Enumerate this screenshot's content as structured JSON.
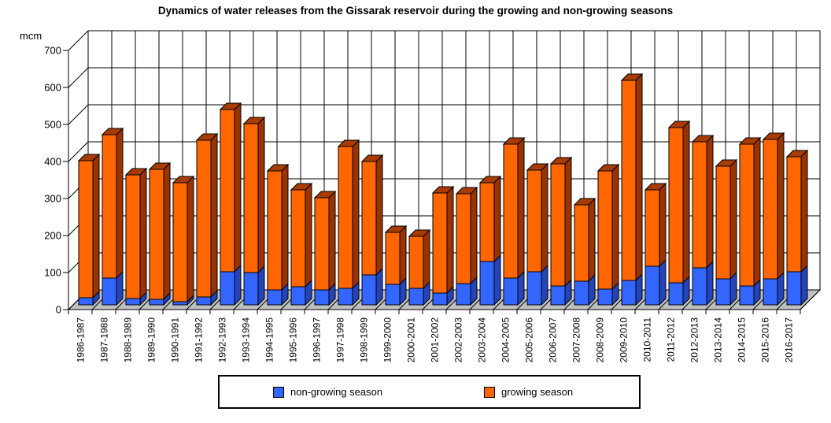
{
  "title": "Dynamics of water releases from the Gissarak reservoir during the growing and non-growing seasons",
  "y_axis": {
    "unit_label": "mcm",
    "min": 0,
    "max": 700,
    "step": 100,
    "ticks": [
      "0",
      "100",
      "200",
      "300",
      "400",
      "500",
      "600",
      "700"
    ]
  },
  "legend": {
    "non_growing_label": "non-growing season",
    "growing_label": "growing season"
  },
  "colors": {
    "non_growing_front": "#3366ff",
    "non_growing_side": "#2444bb",
    "growing_front": "#ff6600",
    "growing_side": "#993300",
    "growing_top": "#a83c00",
    "floor": "#c0c0c0",
    "line": "#000000",
    "background": "#ffffff"
  },
  "chart_data": {
    "type": "bar",
    "stacked": true,
    "pseudo_3d": true,
    "title": "Dynamics of water releases from the Gissarak reservoir during the growing and non-growing seasons",
    "xlabel": "",
    "ylabel": "mcm",
    "ylim": [
      0,
      700
    ],
    "y_step": 100,
    "grid": true,
    "legend_position": "bottom",
    "categories": [
      "1986-1987",
      "1987-1988",
      "1988-1989",
      "1989-1990",
      "1990-1991",
      "1991-1992",
      "1992-1993",
      "1993-1994",
      "1994-1995",
      "1995-1996",
      "1996-1997",
      "1997-1998",
      "1998-1999",
      "1999-2000",
      "2000-2001",
      "2001-2002",
      "2002-2003",
      "2003-2004",
      "2004-2005",
      "2005-2006",
      "2006-2007",
      "2007-2008",
      "2008-2009",
      "2009-2010",
      "2010-2011",
      "2011-2012",
      "2012-2013",
      "2013-2014",
      "2014-2015",
      "2015-2016",
      "2016-2017"
    ],
    "series": [
      {
        "name": "non-growing season",
        "color": "#3366ff",
        "values": [
          20,
          72,
          18,
          15,
          8,
          22,
          90,
          88,
          40,
          48,
          40,
          45,
          80,
          55,
          45,
          32,
          58,
          117,
          72,
          90,
          50,
          64,
          43,
          65,
          105,
          60,
          100,
          70,
          51,
          71,
          89
        ]
      },
      {
        "name": "growing season",
        "color": "#ff6600",
        "values": [
          370,
          388,
          334,
          352,
          322,
          423,
          438,
          402,
          322,
          262,
          250,
          383,
          308,
          140,
          140,
          271,
          242,
          213,
          361,
          273,
          330,
          206,
          319,
          542,
          205,
          418,
          340,
          305,
          384,
          376,
          311
        ]
      }
    ],
    "totals": [
      390,
      460,
      352,
      367,
      330,
      445,
      528,
      490,
      362,
      310,
      290,
      428,
      388,
      195,
      185,
      303,
      300,
      330,
      433,
      363,
      380,
      270,
      362,
      607,
      310,
      478,
      440,
      375,
      435,
      447,
      400
    ]
  }
}
